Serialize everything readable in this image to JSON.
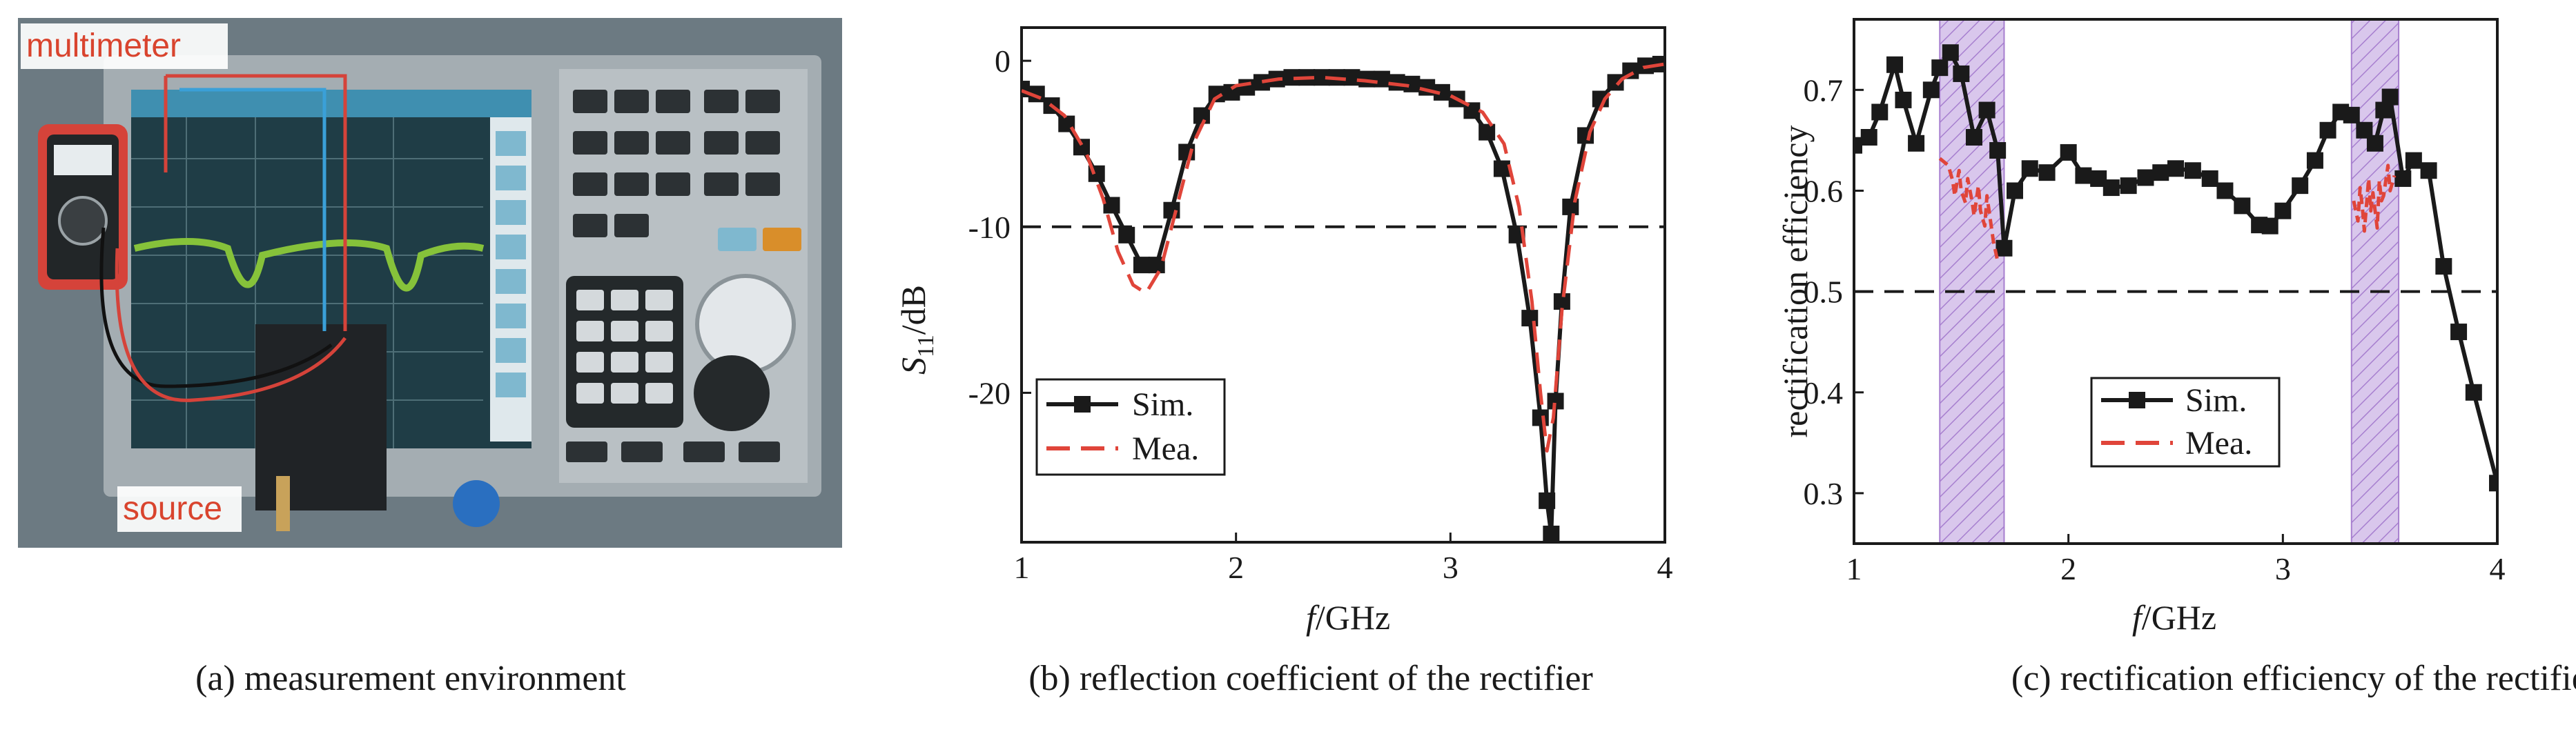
{
  "panels": {
    "a": {
      "caption": "(a) measurement environment",
      "labels": {
        "multimeter": "multimeter",
        "source": "source"
      }
    },
    "b": {
      "caption": "(b) reflection coefficient of the rectifier"
    },
    "c": {
      "caption": "(c)  rectification efficiency of the rectifier"
    }
  },
  "colors": {
    "sim": "#1a1a1a",
    "mea": "#e0453a",
    "band": "#c5a8e0",
    "photo_text": "#d9442e"
  },
  "chart_data": [
    {
      "id": "b",
      "type": "line",
      "xlabel_main": "f",
      "xlabel_unit": "/GHz",
      "ylabel_main": "S",
      "ylabel_sub": "11",
      "ylabel_unit": "/dB",
      "xlim": [
        1,
        4
      ],
      "ylim": [
        -29,
        2
      ],
      "xticks": [
        "1",
        "2",
        "3",
        "4"
      ],
      "xtick_values": [
        1,
        2,
        3,
        4
      ],
      "yticks": [
        "0",
        "-10",
        "-20"
      ],
      "ytick_values": [
        0,
        -10,
        -20
      ],
      "reference_line": -10,
      "legend": {
        "position": "bottom-left",
        "entries": [
          "Sim.",
          "Mea."
        ]
      },
      "series": [
        {
          "name": "Sim.",
          "style": "solid",
          "marker": "square",
          "x": [
            1.0,
            1.07,
            1.14,
            1.21,
            1.28,
            1.35,
            1.42,
            1.49,
            1.56,
            1.63,
            1.7,
            1.77,
            1.84,
            1.91,
            1.98,
            2.05,
            2.12,
            2.19,
            2.26,
            2.33,
            2.4,
            2.47,
            2.54,
            2.61,
            2.68,
            2.75,
            2.82,
            2.89,
            2.96,
            3.03,
            3.1,
            3.17,
            3.24,
            3.31,
            3.37,
            3.42,
            3.45,
            3.47,
            3.49,
            3.52,
            3.56,
            3.63,
            3.7,
            3.77,
            3.84,
            3.91,
            3.98
          ],
          "y": [
            -1.7,
            -2.0,
            -2.7,
            -3.8,
            -5.2,
            -6.8,
            -8.7,
            -10.5,
            -12.3,
            -12.3,
            -9.0,
            -5.5,
            -3.3,
            -2.0,
            -1.9,
            -1.6,
            -1.3,
            -1.1,
            -1.0,
            -1.0,
            -1.0,
            -1.0,
            -1.0,
            -1.1,
            -1.1,
            -1.3,
            -1.4,
            -1.6,
            -1.9,
            -2.3,
            -3.0,
            -4.3,
            -6.5,
            -10.5,
            -15.5,
            -21.5,
            -26.5,
            -28.5,
            -20.5,
            -14.5,
            -8.8,
            -4.5,
            -2.3,
            -1.3,
            -0.6,
            -0.3,
            -0.2
          ]
        },
        {
          "name": "Mea.",
          "style": "dashed",
          "marker": "none",
          "x": [
            1.0,
            1.1,
            1.2,
            1.3,
            1.38,
            1.45,
            1.52,
            1.58,
            1.65,
            1.72,
            1.8,
            1.9,
            2.0,
            2.2,
            2.4,
            2.6,
            2.8,
            3.0,
            3.15,
            3.25,
            3.32,
            3.38,
            3.42,
            3.45,
            3.48,
            3.52,
            3.58,
            3.65,
            3.72,
            3.8,
            3.9,
            4.0
          ],
          "y": [
            -1.8,
            -2.3,
            -3.3,
            -5.5,
            -8.3,
            -11.5,
            -13.5,
            -14.0,
            -12.5,
            -9.0,
            -5.0,
            -2.3,
            -1.5,
            -1.1,
            -1.0,
            -1.2,
            -1.5,
            -2.1,
            -3.1,
            -5.0,
            -8.8,
            -14.5,
            -20.0,
            -23.5,
            -21.5,
            -15.0,
            -8.5,
            -4.3,
            -2.3,
            -1.1,
            -0.4,
            -0.2
          ]
        }
      ]
    },
    {
      "id": "c",
      "type": "line",
      "xlabel_main": "f",
      "xlabel_unit": "/GHz",
      "ylabel": "rectification efficiency",
      "xlim": [
        1,
        4
      ],
      "ylim": [
        0.25,
        0.77
      ],
      "xticks": [
        "1",
        "2",
        "3",
        "4"
      ],
      "xtick_values": [
        1,
        2,
        3,
        4
      ],
      "yticks": [
        "0.3",
        "0.4",
        "0.5",
        "0.6",
        "0.7"
      ],
      "ytick_values": [
        0.3,
        0.4,
        0.5,
        0.6,
        0.7
      ],
      "reference_line": 0.5,
      "shaded_bands": [
        [
          1.4,
          1.7
        ],
        [
          3.32,
          3.54
        ]
      ],
      "legend": {
        "position": "bottom-center",
        "entries": [
          "Sim.",
          "Mea."
        ]
      },
      "series": [
        {
          "name": "Sim.",
          "style": "solid",
          "marker": "square",
          "x": [
            1.0,
            1.07,
            1.12,
            1.19,
            1.23,
            1.29,
            1.36,
            1.4,
            1.45,
            1.5,
            1.56,
            1.62,
            1.67,
            1.7,
            1.75,
            1.82,
            1.9,
            2.0,
            2.07,
            2.14,
            2.2,
            2.28,
            2.36,
            2.43,
            2.5,
            2.58,
            2.66,
            2.73,
            2.81,
            2.89,
            2.94,
            3.0,
            3.08,
            3.15,
            3.21,
            3.27,
            3.32,
            3.38,
            3.43,
            3.47,
            3.5,
            3.56,
            3.61,
            3.68,
            3.75,
            3.82,
            3.89,
            4.0
          ],
          "y": [
            0.645,
            0.653,
            0.678,
            0.725,
            0.69,
            0.647,
            0.7,
            0.722,
            0.737,
            0.716,
            0.653,
            0.68,
            0.64,
            0.543,
            0.6,
            0.622,
            0.618,
            0.638,
            0.615,
            0.612,
            0.603,
            0.605,
            0.613,
            0.618,
            0.622,
            0.62,
            0.612,
            0.6,
            0.585,
            0.566,
            0.565,
            0.58,
            0.605,
            0.63,
            0.66,
            0.678,
            0.675,
            0.66,
            0.647,
            0.68,
            0.693,
            0.612,
            0.63,
            0.62,
            0.525,
            0.46,
            0.4,
            0.31
          ]
        },
        {
          "name": "Mea.",
          "style": "dashed",
          "marker": "none",
          "segments": [
            {
              "x": [
                1.4,
                1.44,
                1.46,
                1.47,
                1.49,
                1.5,
                1.52,
                1.53,
                1.55,
                1.56,
                1.58,
                1.59,
                1.61,
                1.62,
                1.64,
                1.65,
                1.67
              ],
              "y": [
                0.632,
                0.625,
                0.61,
                0.595,
                0.62,
                0.6,
                0.588,
                0.612,
                0.59,
                0.575,
                0.605,
                0.58,
                0.565,
                0.595,
                0.565,
                0.55,
                0.53
              ]
            },
            {
              "x": [
                3.33,
                3.35,
                3.36,
                3.37,
                3.38,
                3.4,
                3.41,
                3.42,
                3.44,
                3.45,
                3.46,
                3.47,
                3.49,
                3.5,
                3.52
              ],
              "y": [
                0.59,
                0.57,
                0.603,
                0.585,
                0.56,
                0.612,
                0.58,
                0.598,
                0.563,
                0.61,
                0.59,
                0.595,
                0.625,
                0.6,
                0.615
              ]
            }
          ]
        }
      ]
    }
  ]
}
